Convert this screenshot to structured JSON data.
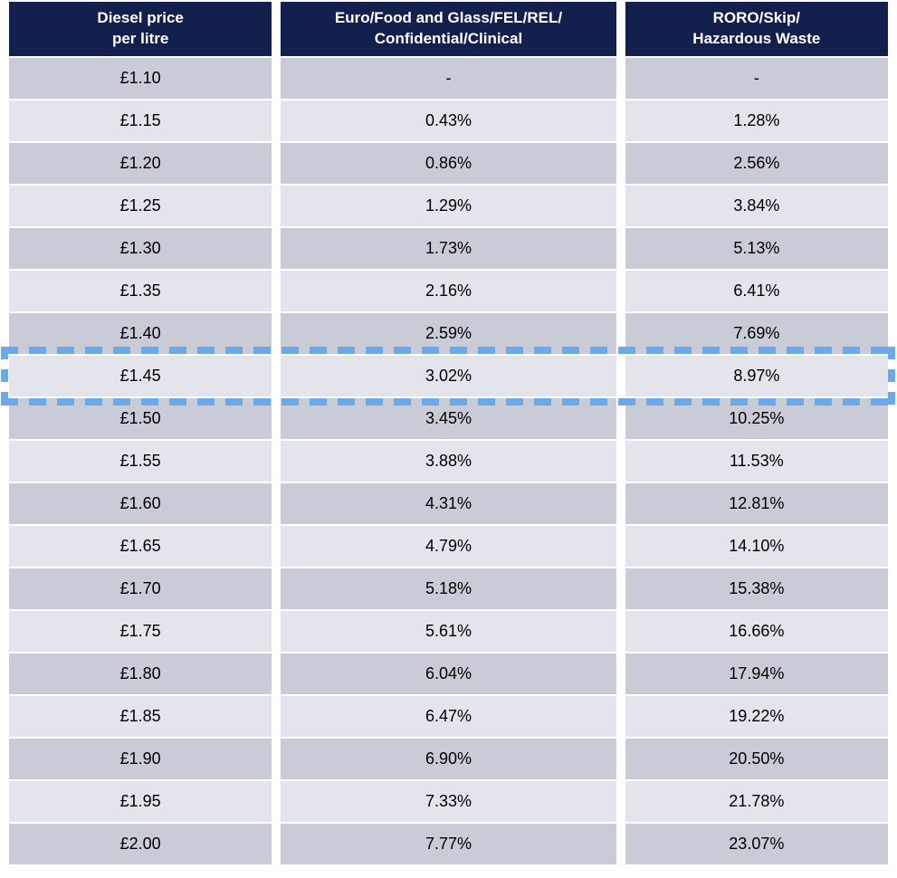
{
  "table": {
    "headers": [
      {
        "label": "Diesel price\nper litre"
      },
      {
        "label": "Euro/Food and Glass/FEL/REL/\nConfidential/Clinical"
      },
      {
        "label": "RORO/Skip/\nHazardous Waste"
      }
    ],
    "rows": [
      {
        "price": "£1.10",
        "euro_group": "-",
        "roro_group": "-"
      },
      {
        "price": "£1.15",
        "euro_group": "0.43%",
        "roro_group": "1.28%"
      },
      {
        "price": "£1.20",
        "euro_group": "0.86%",
        "roro_group": "2.56%"
      },
      {
        "price": "£1.25",
        "euro_group": "1.29%",
        "roro_group": "3.84%"
      },
      {
        "price": "£1.30",
        "euro_group": "1.73%",
        "roro_group": "5.13%"
      },
      {
        "price": "£1.35",
        "euro_group": "2.16%",
        "roro_group": "6.41%"
      },
      {
        "price": "£1.40",
        "euro_group": "2.59%",
        "roro_group": "7.69%"
      },
      {
        "price": "£1.45",
        "euro_group": "3.02%",
        "roro_group": "8.97%"
      },
      {
        "price": "£1.50",
        "euro_group": "3.45%",
        "roro_group": "10.25%"
      },
      {
        "price": "£1.55",
        "euro_group": "3.88%",
        "roro_group": "11.53%"
      },
      {
        "price": "£1.60",
        "euro_group": "4.31%",
        "roro_group": "12.81%"
      },
      {
        "price": "£1.65",
        "euro_group": "4.79%",
        "roro_group": "14.10%"
      },
      {
        "price": "£1.70",
        "euro_group": "5.18%",
        "roro_group": "15.38%"
      },
      {
        "price": "£1.75",
        "euro_group": "5.61%",
        "roro_group": "16.66%"
      },
      {
        "price": "£1.80",
        "euro_group": "6.04%",
        "roro_group": "17.94%"
      },
      {
        "price": "£1.85",
        "euro_group": "6.47%",
        "roro_group": "19.22%"
      },
      {
        "price": "£1.90",
        "euro_group": "6.90%",
        "roro_group": "20.50%"
      },
      {
        "price": "£1.95",
        "euro_group": "7.33%",
        "roro_group": "21.78%"
      },
      {
        "price": "£2.00",
        "euro_group": "7.77%",
        "roro_group": "23.07%"
      }
    ],
    "highlighted_price": "£1.45",
    "colors": {
      "header_bg": "#131F4D",
      "header_text": "#FFFFFF",
      "row_dark": "#C9CCD6",
      "row_light": "#E4E5EC",
      "highlight_dash": "#6CA9E9",
      "cell_text": "#000000"
    }
  }
}
